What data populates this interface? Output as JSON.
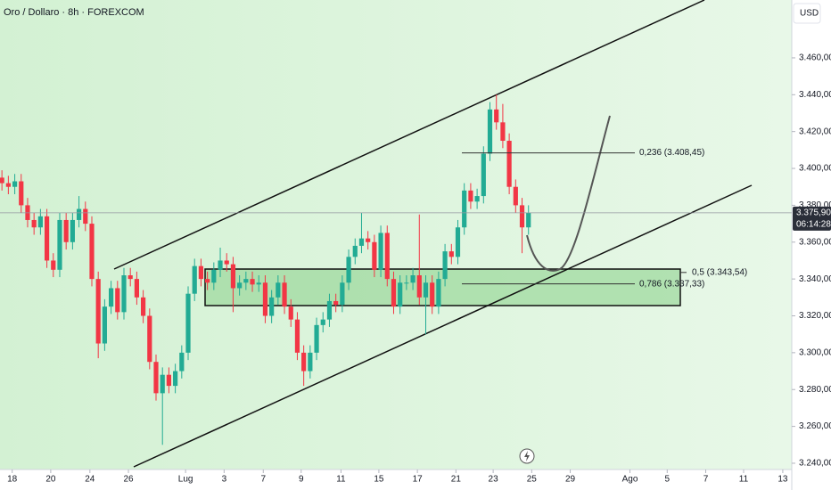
{
  "chart_data": {
    "type": "candlestick",
    "title": "Oro / Dollaro · 8h · FOREXCOM",
    "currency": "USD",
    "up_color": "#22ab94",
    "down_color": "#f23645",
    "grid": false,
    "open": [
      3395,
      3392,
      3390,
      3393,
      3380,
      3372,
      3368,
      3374,
      3350,
      3345,
      3372,
      3360,
      3372,
      3378,
      3370,
      3340,
      3305,
      3325,
      3335,
      3322,
      3342,
      3340,
      3330,
      3320,
      3295,
      3278,
      3288,
      3282,
      3290,
      3300,
      3332,
      3347,
      3340,
      3338,
      3345,
      3350,
      3348,
      3335,
      3338,
      3340,
      3337,
      3338,
      3320,
      3330,
      3338,
      3325,
      3318,
      3300,
      3290,
      3300,
      3315,
      3318,
      3328,
      3326,
      3338,
      3352,
      3358,
      3362,
      3360,
      3345,
      3365,
      3340,
      3325,
      3338,
      3338,
      3342,
      3330,
      3338,
      3325,
      3340,
      3355,
      3352,
      3368,
      3388,
      3382,
      3385,
      3408,
      3432,
      3425,
      3415,
      3390,
      3380,
      3368
    ],
    "high": [
      3399,
      3396,
      3397,
      3397,
      3384,
      3376,
      3378,
      3378,
      3354,
      3376,
      3376,
      3376,
      3385,
      3382,
      3374,
      3344,
      3329,
      3339,
      3339,
      3346,
      3346,
      3344,
      3334,
      3324,
      3299,
      3292,
      3292,
      3294,
      3304,
      3336,
      3351,
      3351,
      3344,
      3349,
      3357,
      3354,
      3352,
      3342,
      3344,
      3344,
      3342,
      3342,
      3334,
      3342,
      3342,
      3329,
      3322,
      3304,
      3304,
      3319,
      3322,
      3332,
      3332,
      3342,
      3356,
      3362,
      3376,
      3366,
      3364,
      3369,
      3369,
      3344,
      3342,
      3342,
      3346,
      3375,
      3342,
      3342,
      3344,
      3359,
      3359,
      3372,
      3392,
      3392,
      3389,
      3412,
      3436,
      3440,
      3435,
      3419,
      3394,
      3384,
      3380
    ],
    "low": [
      3388,
      3386,
      3386,
      3376,
      3368,
      3364,
      3364,
      3346,
      3341,
      3341,
      3356,
      3356,
      3368,
      3366,
      3336,
      3297,
      3301,
      3321,
      3318,
      3318,
      3336,
      3326,
      3316,
      3291,
      3274,
      3250,
      3278,
      3278,
      3286,
      3296,
      3328,
      3336,
      3334,
      3334,
      3341,
      3344,
      3322,
      3331,
      3334,
      3333,
      3333,
      3316,
      3316,
      3326,
      3321,
      3314,
      3296,
      3282,
      3286,
      3296,
      3311,
      3314,
      3322,
      3322,
      3334,
      3348,
      3354,
      3356,
      3341,
      3341,
      3336,
      3321,
      3321,
      3334,
      3334,
      3326,
      3310,
      3321,
      3321,
      3336,
      3348,
      3348,
      3364,
      3378,
      3378,
      3381,
      3404,
      3421,
      3411,
      3386,
      3376,
      3354,
      3364
    ],
    "close": [
      3392,
      3390,
      3393,
      3380,
      3372,
      3368,
      3374,
      3350,
      3345,
      3372,
      3360,
      3372,
      3378,
      3370,
      3340,
      3305,
      3325,
      3335,
      3322,
      3342,
      3340,
      3330,
      3320,
      3295,
      3278,
      3288,
      3282,
      3290,
      3300,
      3332,
      3347,
      3340,
      3338,
      3345,
      3350,
      3348,
      3335,
      3338,
      3340,
      3337,
      3338,
      3320,
      3330,
      3338,
      3325,
      3318,
      3300,
      3290,
      3300,
      3315,
      3318,
      3328,
      3326,
      3338,
      3352,
      3358,
      3362,
      3360,
      3345,
      3365,
      3340,
      3325,
      3338,
      3338,
      3342,
      3330,
      3338,
      3325,
      3340,
      3355,
      3352,
      3368,
      3388,
      3382,
      3385,
      3408,
      3432,
      3425,
      3415,
      3390,
      3380,
      3368,
      3376
    ],
    "xlim": [
      -0.3,
      123
    ],
    "ylim": [
      3236.6,
      3491.4
    ],
    "xticks": [
      {
        "value": 1.6,
        "label": "18"
      },
      {
        "value": 7.6,
        "label": "20"
      },
      {
        "value": 13.7,
        "label": "24"
      },
      {
        "value": 19.7,
        "label": "26"
      },
      {
        "value": 28.6,
        "label": "Lug"
      },
      {
        "value": 34.6,
        "label": "3"
      },
      {
        "value": 40.7,
        "label": "7"
      },
      {
        "value": 46.6,
        "label": "9"
      },
      {
        "value": 52.8,
        "label": "11"
      },
      {
        "value": 58.7,
        "label": "15"
      },
      {
        "value": 64.7,
        "label": "17"
      },
      {
        "value": 70.7,
        "label": "21"
      },
      {
        "value": 76.5,
        "label": "23"
      },
      {
        "value": 82.5,
        "label": "25"
      },
      {
        "value": 88.5,
        "label": "29"
      },
      {
        "value": 97.8,
        "label": "Ago"
      },
      {
        "value": 103.6,
        "label": "5"
      },
      {
        "value": 109.6,
        "label": "7"
      },
      {
        "value": 115.5,
        "label": "11"
      },
      {
        "value": 121.6,
        "label": "13"
      }
    ],
    "yticks": [
      {
        "value": 3240,
        "label": "3.240,00"
      },
      {
        "value": 3260,
        "label": "3.260,00"
      },
      {
        "value": 3280,
        "label": "3.280,00"
      },
      {
        "value": 3300,
        "label": "3.300,00"
      },
      {
        "value": 3320,
        "label": "3.320,00"
      },
      {
        "value": 3340,
        "label": "3.340,00"
      },
      {
        "value": 3360,
        "label": "3.360,00"
      },
      {
        "value": 3380,
        "label": "3.380,00"
      },
      {
        "value": 3400,
        "label": "3.400,00"
      },
      {
        "value": 3420,
        "label": "3.420,00"
      },
      {
        "value": 3440,
        "label": "3.440,00"
      },
      {
        "value": 3460,
        "label": "3.460,00"
      }
    ],
    "last_price": {
      "value": 3375.9,
      "label": "3.375,90"
    },
    "countdown": "06:14:28",
    "annotations": [
      {
        "value": 3408.45,
        "label": "0,236 (3.408,45)"
      },
      {
        "value": 3343.54,
        "label": "0,5 (3.343,54)"
      },
      {
        "value": 3337.33,
        "label": "0,786 (3.337,33)"
      }
    ]
  }
}
